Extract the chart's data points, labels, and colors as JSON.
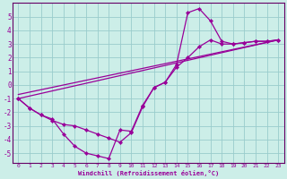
{
  "bg_color": "#cceee8",
  "grid_color": "#99cccc",
  "line_color": "#990099",
  "spine_color": "#660066",
  "xlim": [
    -0.5,
    23.5
  ],
  "ylim": [
    -5.7,
    6.0
  ],
  "yticks": [
    -5,
    -4,
    -3,
    -2,
    -1,
    0,
    1,
    2,
    3,
    4,
    5
  ],
  "xticks": [
    0,
    1,
    2,
    3,
    4,
    5,
    6,
    7,
    8,
    9,
    10,
    11,
    12,
    13,
    14,
    15,
    16,
    17,
    18,
    19,
    20,
    21,
    22,
    23
  ],
  "xlabel": "Windchill (Refroidissement éolien,°C)",
  "curve1_x": [
    0,
    1,
    2,
    3,
    4,
    5,
    6,
    7,
    8,
    9,
    10,
    11,
    12,
    13,
    14,
    15,
    16,
    17,
    18,
    19,
    20,
    21,
    22,
    23
  ],
  "curve1_y": [
    -1.0,
    -1.7,
    -2.2,
    -2.5,
    -3.6,
    -4.5,
    -5.0,
    -5.2,
    -5.4,
    -3.3,
    -3.4,
    -1.5,
    -0.2,
    0.2,
    1.5,
    5.3,
    5.6,
    4.7,
    3.2,
    3.0,
    3.1,
    3.2,
    3.2,
    3.3
  ],
  "curve2_x": [
    0,
    1,
    2,
    3,
    4,
    5,
    6,
    7,
    8,
    9,
    10,
    11,
    12,
    13,
    14,
    15,
    16,
    17,
    18,
    19,
    20,
    21,
    22,
    23
  ],
  "curve2_y": [
    -1.0,
    -1.7,
    -2.2,
    -2.6,
    -2.9,
    -3.0,
    -3.3,
    -3.6,
    -3.9,
    -4.2,
    -3.5,
    -1.6,
    -0.2,
    0.2,
    1.3,
    2.0,
    2.8,
    3.3,
    3.0,
    3.0,
    3.1,
    3.2,
    3.2,
    3.3
  ],
  "line1_x": [
    0,
    23
  ],
  "line1_y": [
    -1.0,
    3.3
  ],
  "line2_x": [
    0,
    23
  ],
  "line2_y": [
    -0.7,
    3.3
  ]
}
